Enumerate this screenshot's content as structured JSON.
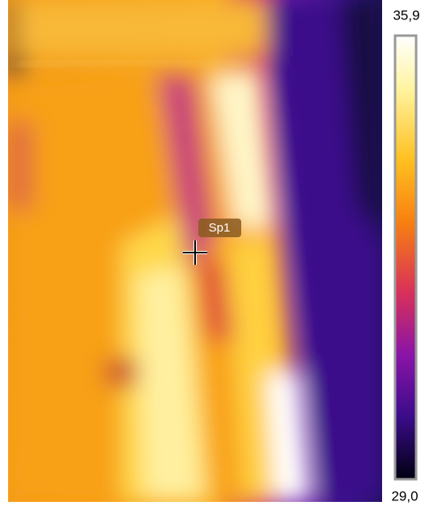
{
  "scale": {
    "max": "35,9",
    "min": "29,0"
  },
  "spot": {
    "label": "Sp1"
  }
}
